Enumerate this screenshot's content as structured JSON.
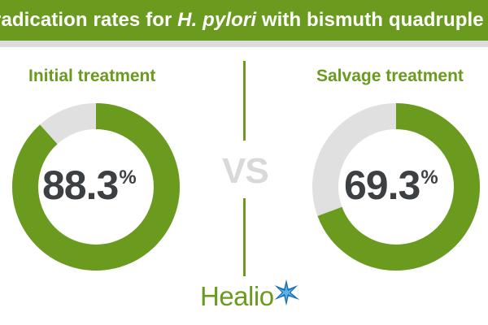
{
  "header": {
    "title_before": "radication rates for ",
    "title_italic": "H. pylori",
    "title_after": " with bismuth quadruple therapy"
  },
  "comparison": {
    "vs_label": "VS"
  },
  "brand": {
    "name": "Healio",
    "logo_lettering": "Healio"
  },
  "colors": {
    "accent_green": "#6a9b1f",
    "remainder_gray": "#e0e0e0",
    "value_text": "#3d4043",
    "vs_gray": "#d9d9d9"
  },
  "chart_data": [
    {
      "type": "pie",
      "title": "Initial treatment",
      "display_value": "88.3",
      "unit": "%",
      "values": [
        88.3,
        11.7
      ]
    },
    {
      "type": "pie",
      "title": "Salvage treatment",
      "display_value": "69.3",
      "unit": "%",
      "values": [
        69.3,
        30.7
      ]
    }
  ]
}
